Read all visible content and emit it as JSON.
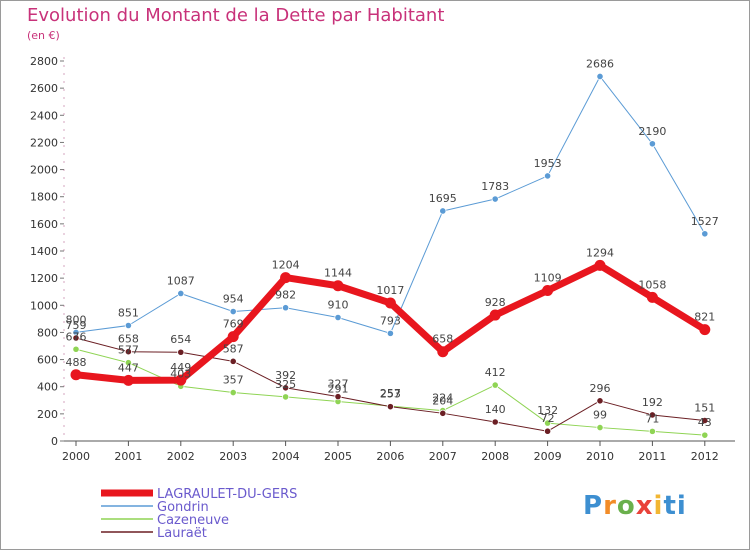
{
  "header": {
    "title": "Evolution du Montant de la Dette par Habitant",
    "unit": "(en €)"
  },
  "logo": {
    "text": "Proxiti",
    "colors": [
      "#3d8fd1",
      "#f28c28",
      "#6ab04c",
      "#e9423a",
      "#f2b632",
      "#3d8fd1"
    ]
  },
  "chart_data": {
    "type": "line",
    "title": "Evolution du Montant de la Dette par Habitant",
    "ylabel": "(en €)",
    "xlabel": "",
    "x": [
      "2000",
      "2001",
      "2002",
      "2003",
      "2004",
      "2005",
      "2006",
      "2007",
      "2008",
      "2009",
      "2010",
      "2011",
      "2012"
    ],
    "ylim": [
      0,
      2800
    ],
    "yticks": [
      0,
      200,
      400,
      600,
      800,
      1000,
      1200,
      1400,
      1600,
      1800,
      2000,
      2200,
      2400,
      2600,
      2800
    ],
    "grid": false,
    "legend_position": "bottom-left",
    "series": [
      {
        "name": "LAGRAULET-DU-GERS",
        "color": "#e8161e",
        "width": 7,
        "values": [
          488,
          447,
          449,
          769,
          1204,
          1144,
          1017,
          658,
          928,
          1109,
          1294,
          1058,
          821
        ]
      },
      {
        "name": "Gondrin",
        "color": "#5b9bd5",
        "width": 1,
        "values": [
          800,
          851,
          1087,
          954,
          982,
          910,
          793,
          1695,
          1783,
          1953,
          2686,
          2190,
          1527
        ]
      },
      {
        "name": "Cazeneuve",
        "color": "#8fd454",
        "width": 1,
        "values": [
          676,
          577,
          403,
          357,
          325,
          291,
          257,
          224,
          412,
          132,
          99,
          71,
          43
        ]
      },
      {
        "name": "Lauraët",
        "color": "#6b1f24",
        "width": 1,
        "values": [
          759,
          658,
          654,
          587,
          392,
          327,
          253,
          204,
          140,
          72,
          296,
          192,
          151
        ]
      }
    ]
  }
}
